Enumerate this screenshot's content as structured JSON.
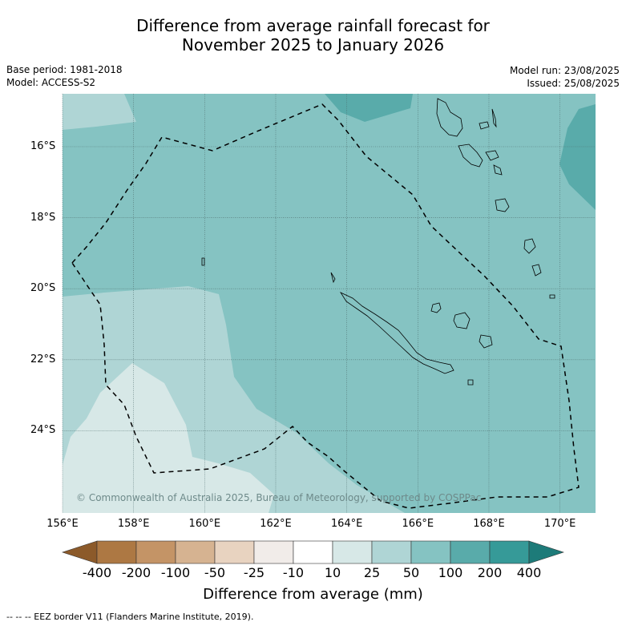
{
  "title_line1": "Difference from average rainfall forecast for",
  "title_line2": "November 2025 to January 2026",
  "base_period": "Base period: 1981-2018",
  "model": "Model: ACCESS-S2",
  "model_run": "Model run: 23/08/2025",
  "issued": "Issued: 25/08/2025",
  "copyright": "© Commonwealth of Australia 2025, Bureau of Meteorology, supported by COSPPac",
  "lat_labels": [
    "16°S",
    "18°S",
    "20°S",
    "22°S",
    "24°S"
  ],
  "lon_labels": [
    "156°E",
    "158°E",
    "160°E",
    "162°E",
    "164°E",
    "166°E",
    "168°E",
    "170°E"
  ],
  "colorbar": {
    "title": "Difference from average (mm)",
    "tick_labels": [
      "-400",
      "-200",
      "-100",
      "-50",
      "-25",
      "-10",
      "10",
      "25",
      "50",
      "100",
      "200",
      "400"
    ],
    "colors": [
      "#8c5a2a",
      "#ad7843",
      "#c49466",
      "#d6b391",
      "#e8d3c0",
      "#f1ece9",
      "#ffffff",
      "#d7e8e7",
      "#afd5d5",
      "#85c3c2",
      "#59abaa",
      "#369a98",
      "#1d7b79"
    ]
  },
  "map": {
    "lon_range": [
      156,
      171
    ],
    "lat_range": [
      -26.3,
      -14.5
    ],
    "contour_colors": {
      "very_light": "#d7e8e7",
      "light": "#afd5d5",
      "medium": "#85c3c2",
      "dark": "#59abaa"
    }
  },
  "footer": "--  --  -- EEZ border V11 (Flanders Marine Institute, 2019)."
}
